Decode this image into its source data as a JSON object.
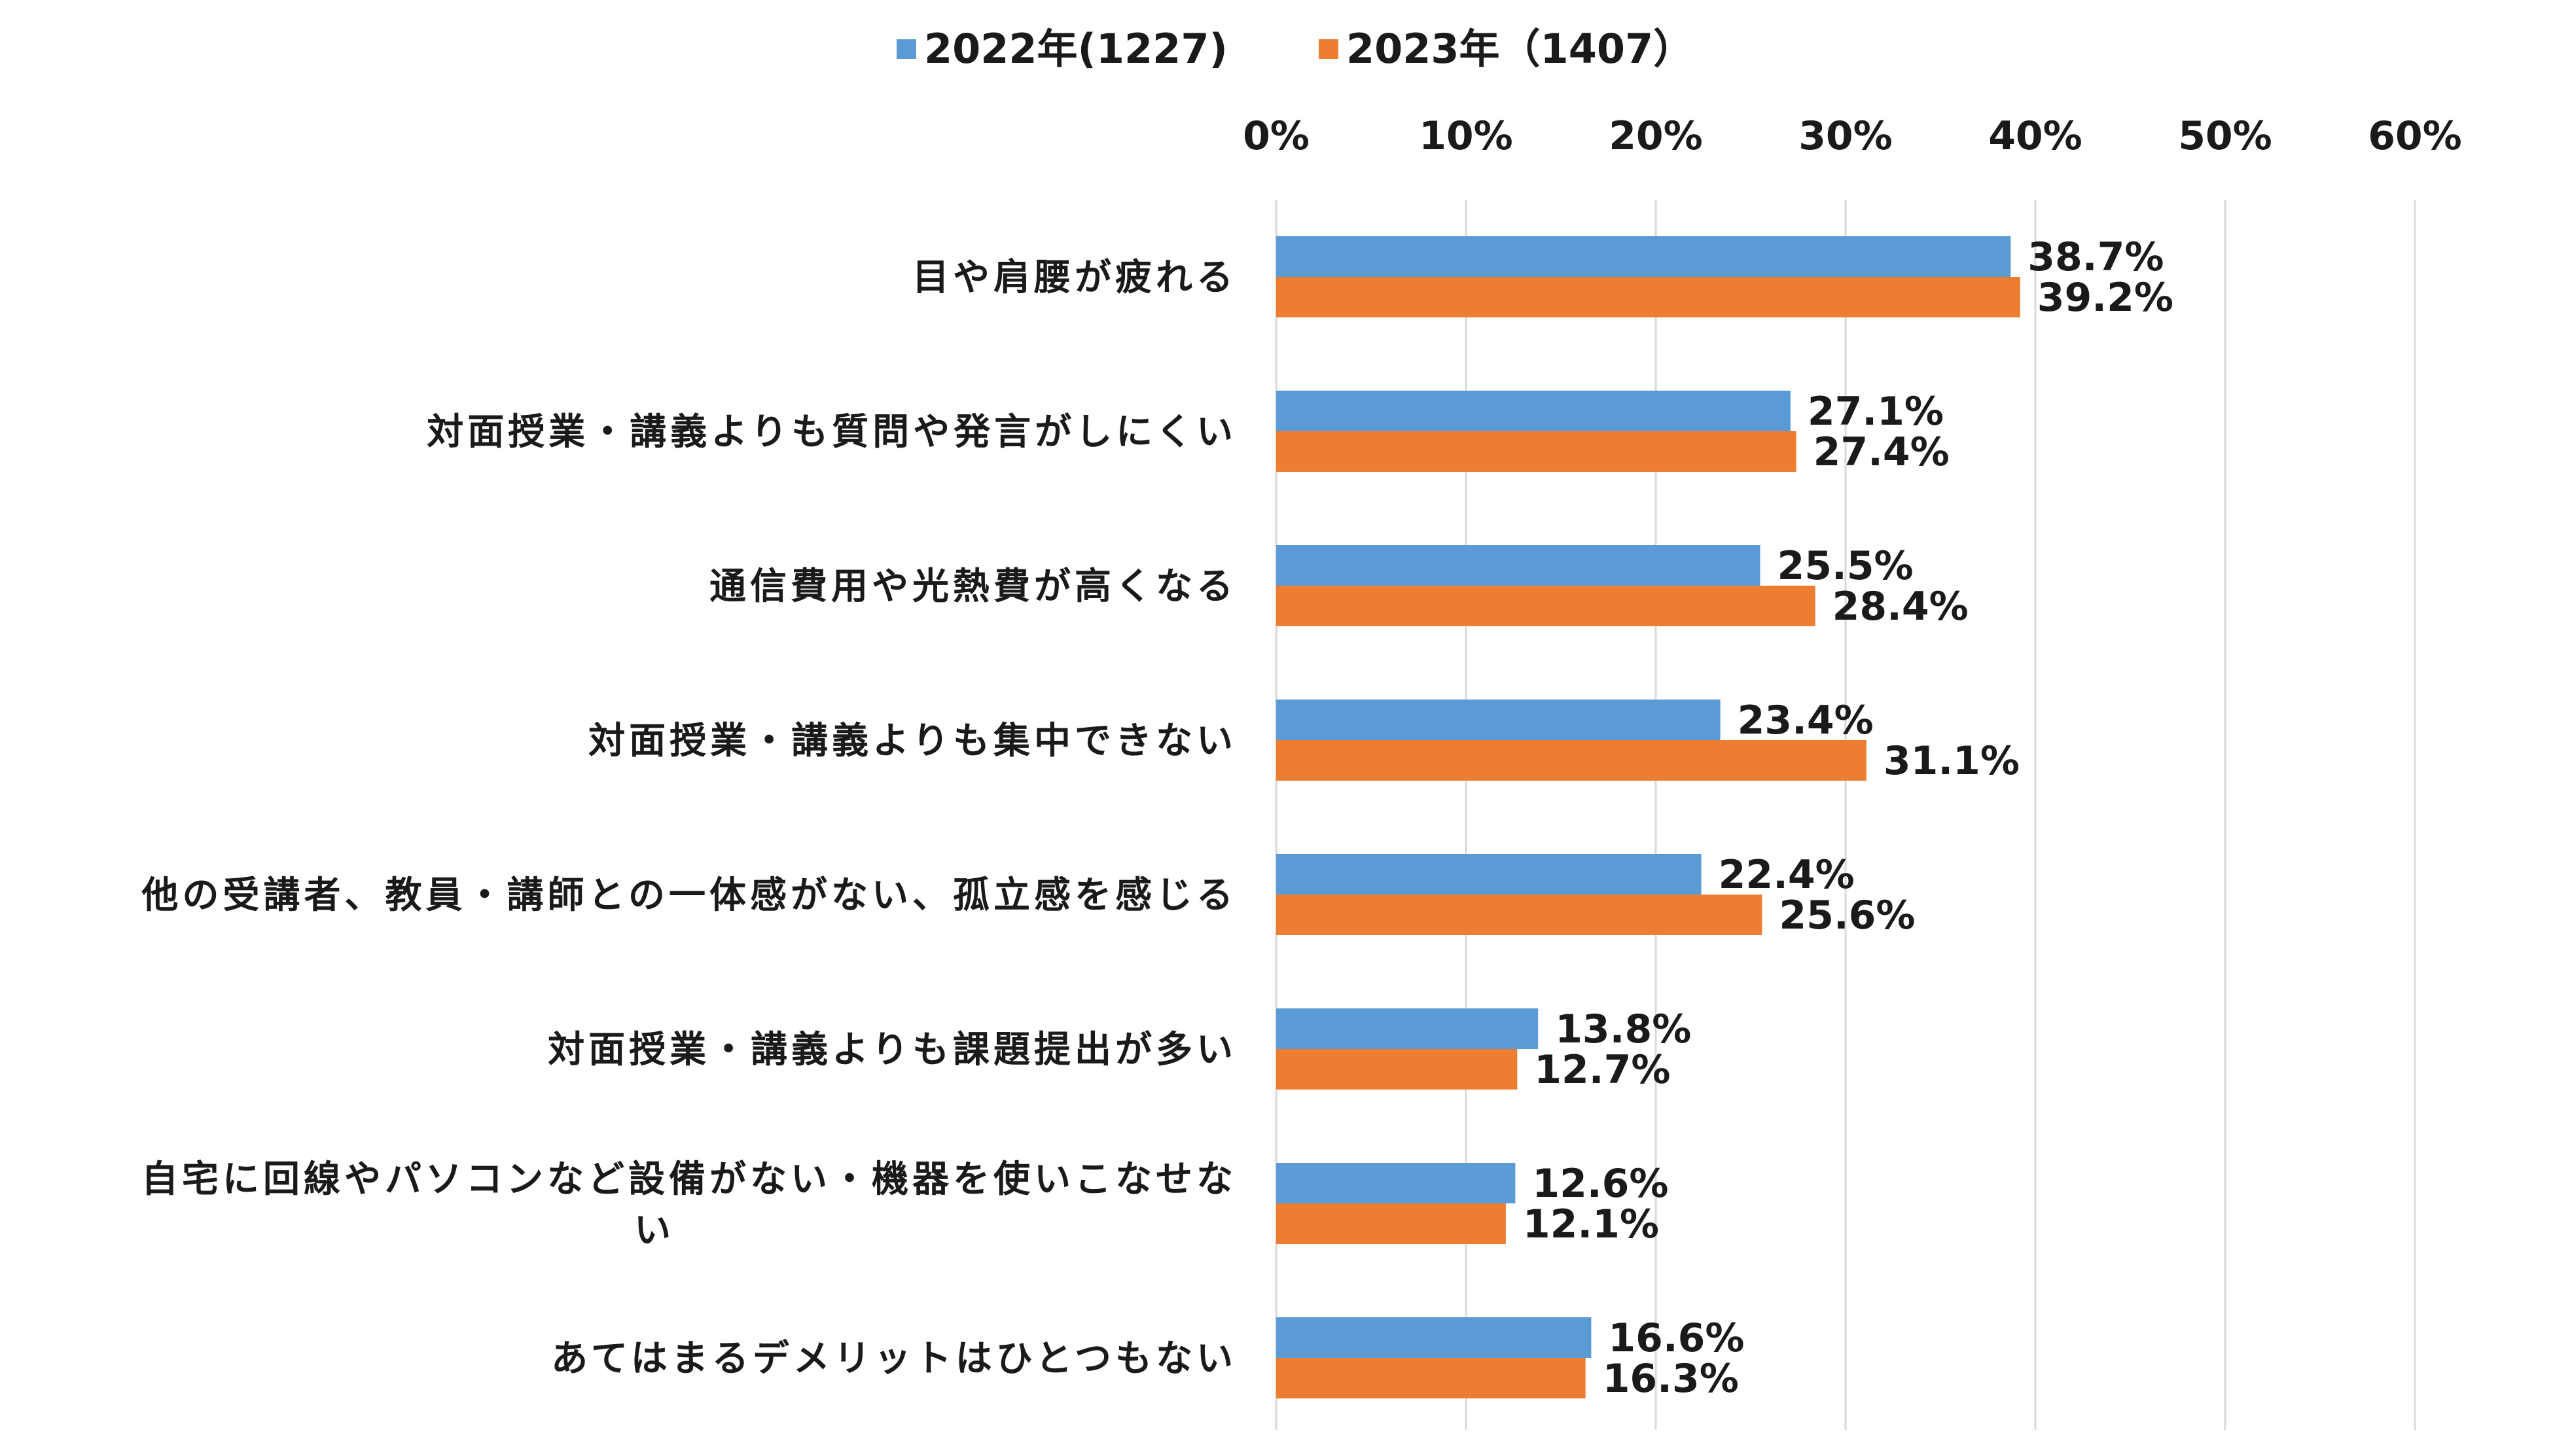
{
  "chart_data": {
    "type": "bar",
    "orientation": "horizontal",
    "title": "",
    "xlabel": "",
    "ylabel": "",
    "xlim": [
      0,
      60
    ],
    "xticks": [
      "0%",
      "10%",
      "20%",
      "30%",
      "40%",
      "50%",
      "60%"
    ],
    "grid": true,
    "legend_position": "top",
    "categories": [
      "目や肩腰が疲れる",
      "対面授業・講義よりも質問や発言がしにくい",
      "通信費用や光熱費が高くなる",
      "対面授業・講義よりも集中できない",
      "他の受講者、教員・講師との一体感がない、孤立感を感じる",
      "対面授業・講義よりも課題提出が多い",
      "自宅に回線やパソコンなど設備がない・機器を使いこなせない",
      "あてはまるデメリットはひとつもない"
    ],
    "series": [
      {
        "name": "2022年(1227)",
        "color": "#5b9bd5",
        "values": [
          38.7,
          27.1,
          25.5,
          23.4,
          22.4,
          13.8,
          12.6,
          16.6
        ],
        "labels": [
          "38.7%",
          "27.1%",
          "25.5%",
          "23.4%",
          "22.4%",
          "13.8%",
          "12.6%",
          "16.6%"
        ]
      },
      {
        "name": "2023年（1407）",
        "color": "#ed7d31",
        "values": [
          39.2,
          27.4,
          28.4,
          31.1,
          25.6,
          12.7,
          12.1,
          16.3
        ],
        "labels": [
          "39.2%",
          "27.4%",
          "28.4%",
          "31.1%",
          "25.6%",
          "12.7%",
          "12.1%",
          "16.3%"
        ]
      }
    ]
  }
}
